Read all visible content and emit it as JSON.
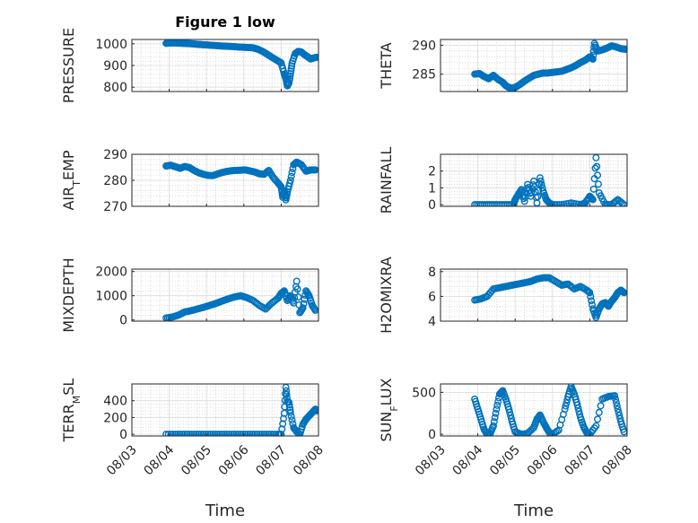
{
  "figure": {
    "title": "Figure 1 low",
    "xlabel": "Time"
  },
  "colors": {
    "marker": "#0072BD",
    "axis": "#262626",
    "grid": "#c8c8c8"
  },
  "x_ticks": [
    "08/03",
    "08/04",
    "08/05",
    "08/06",
    "08/07",
    "08/08"
  ],
  "chart_data": [
    {
      "type": "scatter",
      "ylabel": "PRESSURE",
      "ylim": [
        780,
        1020
      ],
      "yticks": [
        800,
        900,
        1000
      ],
      "grid": true,
      "x": [
        "08/03 22:00",
        "08/04 00:00",
        "08/04 03:00",
        "08/04 06:00",
        "08/04 09:00",
        "08/04 12:00",
        "08/04 15:00",
        "08/04 18:00",
        "08/04 21:00",
        "08/05 00:00",
        "08/05 03:00",
        "08/05 06:00",
        "08/05 09:00",
        "08/05 12:00",
        "08/05 15:00",
        "08/05 18:00",
        "08/05 21:00",
        "08/06 00:00",
        "08/06 03:00",
        "08/06 06:00",
        "08/06 09:00",
        "08/06 12:00",
        "08/06 15:00",
        "08/06 18:00",
        "08/06 21:00",
        "08/07 00:00",
        "08/07 02:00",
        "08/07 03:00",
        "08/07 04:00",
        "08/07 05:00",
        "08/07 06:00",
        "08/07 07:00",
        "08/07 09:00",
        "08/07 11:00",
        "08/07 13:00",
        "08/07 15:00",
        "08/07 17:00",
        "08/07 19:00",
        "08/07 21:00",
        "08/07 23:00"
      ],
      "y": [
        1002,
        1004,
        1004,
        1003,
        1002,
        1001,
        1000,
        998,
        996,
        995,
        993,
        992,
        990,
        989,
        988,
        987,
        985,
        984,
        983,
        981,
        975,
        965,
        952,
        938,
        925,
        912,
        860,
        840,
        806,
        820,
        862,
        910,
        955,
        965,
        962,
        950,
        940,
        930,
        935,
        938
      ]
    },
    {
      "type": "scatter",
      "ylabel": "THETA",
      "ylim": [
        282,
        291
      ],
      "yticks": [
        285,
        290
      ],
      "grid": true,
      "x": [
        "08/03 22:00",
        "08/04 01:00",
        "08/04 04:00",
        "08/04 07:00",
        "08/04 10:00",
        "08/04 13:00",
        "08/04 16:00",
        "08/04 18:00",
        "08/04 20:00",
        "08/04 22:00",
        "08/05 00:00",
        "08/05 03:00",
        "08/05 06:00",
        "08/05 09:00",
        "08/05 12:00",
        "08/05 15:00",
        "08/05 18:00",
        "08/05 21:00",
        "08/06 00:00",
        "08/06 03:00",
        "08/06 06:00",
        "08/06 09:00",
        "08/06 12:00",
        "08/06 15:00",
        "08/06 18:00",
        "08/06 21:00",
        "08/07 00:00",
        "08/07 02:00",
        "08/07 03:00",
        "08/07 05:00",
        "08/07 08:00",
        "08/07 11:00",
        "08/07 14:00",
        "08/07 17:00",
        "08/07 20:00",
        "08/07 23:00"
      ],
      "y": [
        285,
        285.1,
        284.6,
        284.2,
        284.8,
        284.1,
        283.6,
        283.0,
        282.7,
        282.6,
        282.7,
        283.2,
        283.8,
        284.3,
        284.8,
        285.0,
        285.2,
        285.2,
        285.3,
        285.4,
        285.5,
        285.8,
        286.1,
        286.5,
        287.0,
        287.4,
        288.0,
        287.6,
        290.3,
        289.0,
        289.2,
        289.5,
        289.9,
        289.7,
        289.4,
        289.3
      ]
    },
    {
      "type": "scatter",
      "ylabel": "AIR_TEMP",
      "ylim": [
        270,
        290
      ],
      "yticks": [
        270,
        280,
        290
      ],
      "grid": true,
      "x": [
        "08/03 22:00",
        "08/04 01:00",
        "08/04 04:00",
        "08/04 07:00",
        "08/04 10:00",
        "08/04 13:00",
        "08/04 16:00",
        "08/04 19:00",
        "08/04 22:00",
        "08/05 01:00",
        "08/05 04:00",
        "08/05 07:00",
        "08/05 10:00",
        "08/05 13:00",
        "08/05 16:00",
        "08/05 19:00",
        "08/05 22:00",
        "08/06 01:00",
        "08/06 04:00",
        "08/06 07:00",
        "08/06 10:00",
        "08/06 13:00",
        "08/06 16:00",
        "08/06 19:00",
        "08/06 22:00",
        "08/07 00:00",
        "08/07 01:00",
        "08/07 02:00",
        "08/07 03:00",
        "08/07 04:00",
        "08/07 06:00",
        "08/07 08:00",
        "08/07 10:00",
        "08/07 13:00",
        "08/07 16:00",
        "08/07 19:00",
        "08/07 22:00"
      ],
      "y": [
        285.5,
        285.8,
        285.2,
        284.6,
        285.3,
        284.9,
        283.8,
        282.9,
        282.3,
        281.9,
        281.8,
        282.4,
        283.0,
        283.4,
        283.7,
        283.8,
        283.9,
        284.0,
        283.6,
        283.2,
        282.5,
        282.3,
        283.8,
        281.0,
        279.0,
        277.5,
        273.5,
        276.0,
        272.5,
        275.5,
        280.0,
        286.0,
        287.0,
        286.0,
        283.5,
        284.0,
        284.0
      ]
    },
    {
      "type": "scatter",
      "ylabel": "RAINFALL",
      "ylim": [
        -0.1,
        3.0
      ],
      "yticks": [
        0,
        1,
        2
      ],
      "grid": true,
      "x": [
        "08/03 22:00",
        "08/04 03:00",
        "08/04 08:00",
        "08/04 13:00",
        "08/04 18:00",
        "08/04 23:00",
        "08/05 00:00",
        "08/05 02:00",
        "08/05 04:00",
        "08/05 06:00",
        "08/05 08:00",
        "08/05 10:00",
        "08/05 12:00",
        "08/05 14:00",
        "08/05 16:00",
        "08/05 18:00",
        "08/05 20:00",
        "08/05 22:00",
        "08/06 00:00",
        "08/06 06:00",
        "08/06 12:00",
        "08/06 18:00",
        "08/06 21:00",
        "08/07 00:00",
        "08/07 02:00",
        "08/07 04:00",
        "08/07 06:00",
        "08/07 10:00",
        "08/07 14:00",
        "08/07 18:00",
        "08/07 22:00"
      ],
      "y": [
        0,
        0,
        0,
        0,
        0,
        0,
        0.3,
        0.6,
        0.9,
        0.2,
        1.2,
        0.5,
        1.4,
        0.1,
        1.6,
        0.8,
        0.3,
        0.1,
        0,
        0,
        0.1,
        0,
        0.1,
        0.5,
        0.3,
        2.8,
        0.7,
        0,
        0,
        0.3,
        0
      ]
    },
    {
      "type": "scatter",
      "ylabel": "MIXDEPTH",
      "ylim": [
        -50,
        2100
      ],
      "yticks": [
        0,
        1000,
        2000
      ],
      "grid": true,
      "x": [
        "08/03 22:00",
        "08/04 02:00",
        "08/04 06:00",
        "08/04 10:00",
        "08/04 14:00",
        "08/04 18:00",
        "08/04 22:00",
        "08/05 02:00",
        "08/05 06:00",
        "08/05 10:00",
        "08/05 14:00",
        "08/05 18:00",
        "08/05 22:00",
        "08/06 02:00",
        "08/06 06:00",
        "08/06 10:00",
        "08/06 14:00",
        "08/06 18:00",
        "08/06 22:00",
        "08/07 00:00",
        "08/07 02:00",
        "08/07 04:00",
        "08/07 06:00",
        "08/07 08:00",
        "08/07 10:00",
        "08/07 12:00",
        "08/07 14:00",
        "08/07 16:00",
        "08/07 18:00",
        "08/07 20:00",
        "08/07 22:00"
      ],
      "y": [
        80,
        120,
        200,
        330,
        380,
        450,
        520,
        600,
        680,
        780,
        870,
        950,
        1000,
        920,
        800,
        600,
        450,
        700,
        900,
        1100,
        1200,
        800,
        1000,
        700,
        1600,
        300,
        500,
        1200,
        1000,
        600,
        400
      ]
    },
    {
      "type": "scatter",
      "ylabel": "H2OMIXRA",
      "ylim": [
        4,
        8.2
      ],
      "yticks": [
        4,
        6,
        8
      ],
      "grid": true,
      "x": [
        "08/03 22:00",
        "08/04 02:00",
        "08/04 06:00",
        "08/04 10:00",
        "08/04 14:00",
        "08/04 18:00",
        "08/04 22:00",
        "08/05 02:00",
        "08/05 06:00",
        "08/05 10:00",
        "08/05 14:00",
        "08/05 18:00",
        "08/05 22:00",
        "08/06 02:00",
        "08/06 06:00",
        "08/06 10:00",
        "08/06 14:00",
        "08/06 18:00",
        "08/06 22:00",
        "08/07 00:00",
        "08/07 02:00",
        "08/07 04:00",
        "08/07 06:00",
        "08/07 08:00",
        "08/07 10:00",
        "08/07 12:00",
        "08/07 14:00",
        "08/07 16:00",
        "08/07 18:00",
        "08/07 20:00",
        "08/07 22:00"
      ],
      "y": [
        5.7,
        5.8,
        6.0,
        6.6,
        6.7,
        6.8,
        6.9,
        7.0,
        7.1,
        7.2,
        7.4,
        7.5,
        7.5,
        7.2,
        6.9,
        7.0,
        6.6,
        6.8,
        6.5,
        6.3,
        5.0,
        4.3,
        5.0,
        5.4,
        5.5,
        5.2,
        5.6,
        5.9,
        6.3,
        6.5,
        6.3
      ]
    },
    {
      "type": "scatter",
      "ylabel": "TERR_MSL",
      "ylim": [
        -20,
        600
      ],
      "yticks": [
        0,
        200,
        400
      ],
      "grid": true,
      "x": [
        "08/03 22:00",
        "08/04 04:00",
        "08/04 10:00",
        "08/04 16:00",
        "08/04 22:00",
        "08/05 04:00",
        "08/05 10:00",
        "08/05 16:00",
        "08/05 22:00",
        "08/06 04:00",
        "08/06 10:00",
        "08/06 16:00",
        "08/06 22:00",
        "08/07 00:00",
        "08/07 02:00",
        "08/07 03:00",
        "08/07 04:00",
        "08/07 05:00",
        "08/07 06:00",
        "08/07 08:00",
        "08/07 10:00",
        "08/07 12:00",
        "08/07 14:00",
        "08/07 16:00",
        "08/07 18:00",
        "08/07 20:00",
        "08/07 22:00",
        "08/07 23:00"
      ],
      "y": [
        0,
        0,
        0,
        0,
        0,
        0,
        0,
        0,
        0,
        0,
        0,
        0,
        0,
        0,
        250,
        560,
        390,
        380,
        260,
        80,
        30,
        0,
        120,
        180,
        220,
        260,
        300,
        280
      ]
    },
    {
      "type": "scatter",
      "ylabel": "SUN_FLUX",
      "ylim": [
        -20,
        600
      ],
      "yticks": [
        0,
        500
      ],
      "grid": true,
      "x": [
        "08/03 22:00",
        "08/04 00:00",
        "08/04 02:00",
        "08/04 04:00",
        "08/04 06:00",
        "08/04 08:00",
        "08/04 10:00",
        "08/04 12:00",
        "08/04 14:00",
        "08/04 16:00",
        "08/04 18:00",
        "08/04 20:00",
        "08/04 22:00",
        "08/05 00:00",
        "08/05 04:00",
        "08/05 08:00",
        "08/05 12:00",
        "08/05 14:00",
        "08/05 16:00",
        "08/05 18:00",
        "08/05 20:00",
        "08/05 22:00",
        "08/06 00:00",
        "08/06 04:00",
        "08/06 08:00",
        "08/06 10:00",
        "08/06 12:00",
        "08/06 14:00",
        "08/06 16:00",
        "08/06 18:00",
        "08/06 20:00",
        "08/06 22:00",
        "08/07 00:00",
        "08/07 04:00",
        "08/07 08:00",
        "08/07 12:00",
        "08/07 16:00",
        "08/07 18:00",
        "08/07 20:00",
        "08/07 22:00"
      ],
      "y": [
        420,
        300,
        180,
        60,
        0,
        10,
        100,
        300,
        480,
        520,
        420,
        300,
        150,
        30,
        0,
        10,
        80,
        180,
        230,
        150,
        80,
        20,
        0,
        50,
        300,
        450,
        570,
        480,
        350,
        200,
        90,
        20,
        0,
        100,
        420,
        450,
        460,
        300,
        150,
        30
      ]
    }
  ]
}
